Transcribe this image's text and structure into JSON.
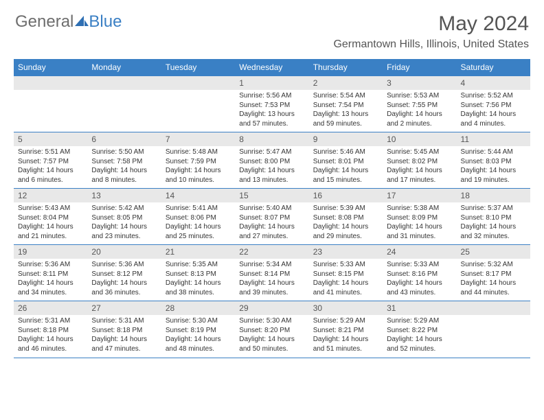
{
  "brand": {
    "part1": "General",
    "part2": "Blue"
  },
  "title": "May 2024",
  "location": "Germantown Hills, Illinois, United States",
  "colors": {
    "header_bg": "#3a80c5",
    "header_text": "#ffffff",
    "rule": "#3a7fc4",
    "daynum_bg": "#e8e8e8",
    "text_gray": "#555555",
    "body_text": "#333333"
  },
  "days_of_week": [
    "Sunday",
    "Monday",
    "Tuesday",
    "Wednesday",
    "Thursday",
    "Friday",
    "Saturday"
  ],
  "weeks": [
    [
      {
        "n": "",
        "sunrise": "",
        "sunset": "",
        "daylight": ""
      },
      {
        "n": "",
        "sunrise": "",
        "sunset": "",
        "daylight": ""
      },
      {
        "n": "",
        "sunrise": "",
        "sunset": "",
        "daylight": ""
      },
      {
        "n": "1",
        "sunrise": "Sunrise: 5:56 AM",
        "sunset": "Sunset: 7:53 PM",
        "daylight": "Daylight: 13 hours and 57 minutes."
      },
      {
        "n": "2",
        "sunrise": "Sunrise: 5:54 AM",
        "sunset": "Sunset: 7:54 PM",
        "daylight": "Daylight: 13 hours and 59 minutes."
      },
      {
        "n": "3",
        "sunrise": "Sunrise: 5:53 AM",
        "sunset": "Sunset: 7:55 PM",
        "daylight": "Daylight: 14 hours and 2 minutes."
      },
      {
        "n": "4",
        "sunrise": "Sunrise: 5:52 AM",
        "sunset": "Sunset: 7:56 PM",
        "daylight": "Daylight: 14 hours and 4 minutes."
      }
    ],
    [
      {
        "n": "5",
        "sunrise": "Sunrise: 5:51 AM",
        "sunset": "Sunset: 7:57 PM",
        "daylight": "Daylight: 14 hours and 6 minutes."
      },
      {
        "n": "6",
        "sunrise": "Sunrise: 5:50 AM",
        "sunset": "Sunset: 7:58 PM",
        "daylight": "Daylight: 14 hours and 8 minutes."
      },
      {
        "n": "7",
        "sunrise": "Sunrise: 5:48 AM",
        "sunset": "Sunset: 7:59 PM",
        "daylight": "Daylight: 14 hours and 10 minutes."
      },
      {
        "n": "8",
        "sunrise": "Sunrise: 5:47 AM",
        "sunset": "Sunset: 8:00 PM",
        "daylight": "Daylight: 14 hours and 13 minutes."
      },
      {
        "n": "9",
        "sunrise": "Sunrise: 5:46 AM",
        "sunset": "Sunset: 8:01 PM",
        "daylight": "Daylight: 14 hours and 15 minutes."
      },
      {
        "n": "10",
        "sunrise": "Sunrise: 5:45 AM",
        "sunset": "Sunset: 8:02 PM",
        "daylight": "Daylight: 14 hours and 17 minutes."
      },
      {
        "n": "11",
        "sunrise": "Sunrise: 5:44 AM",
        "sunset": "Sunset: 8:03 PM",
        "daylight": "Daylight: 14 hours and 19 minutes."
      }
    ],
    [
      {
        "n": "12",
        "sunrise": "Sunrise: 5:43 AM",
        "sunset": "Sunset: 8:04 PM",
        "daylight": "Daylight: 14 hours and 21 minutes."
      },
      {
        "n": "13",
        "sunrise": "Sunrise: 5:42 AM",
        "sunset": "Sunset: 8:05 PM",
        "daylight": "Daylight: 14 hours and 23 minutes."
      },
      {
        "n": "14",
        "sunrise": "Sunrise: 5:41 AM",
        "sunset": "Sunset: 8:06 PM",
        "daylight": "Daylight: 14 hours and 25 minutes."
      },
      {
        "n": "15",
        "sunrise": "Sunrise: 5:40 AM",
        "sunset": "Sunset: 8:07 PM",
        "daylight": "Daylight: 14 hours and 27 minutes."
      },
      {
        "n": "16",
        "sunrise": "Sunrise: 5:39 AM",
        "sunset": "Sunset: 8:08 PM",
        "daylight": "Daylight: 14 hours and 29 minutes."
      },
      {
        "n": "17",
        "sunrise": "Sunrise: 5:38 AM",
        "sunset": "Sunset: 8:09 PM",
        "daylight": "Daylight: 14 hours and 31 minutes."
      },
      {
        "n": "18",
        "sunrise": "Sunrise: 5:37 AM",
        "sunset": "Sunset: 8:10 PM",
        "daylight": "Daylight: 14 hours and 32 minutes."
      }
    ],
    [
      {
        "n": "19",
        "sunrise": "Sunrise: 5:36 AM",
        "sunset": "Sunset: 8:11 PM",
        "daylight": "Daylight: 14 hours and 34 minutes."
      },
      {
        "n": "20",
        "sunrise": "Sunrise: 5:36 AM",
        "sunset": "Sunset: 8:12 PM",
        "daylight": "Daylight: 14 hours and 36 minutes."
      },
      {
        "n": "21",
        "sunrise": "Sunrise: 5:35 AM",
        "sunset": "Sunset: 8:13 PM",
        "daylight": "Daylight: 14 hours and 38 minutes."
      },
      {
        "n": "22",
        "sunrise": "Sunrise: 5:34 AM",
        "sunset": "Sunset: 8:14 PM",
        "daylight": "Daylight: 14 hours and 39 minutes."
      },
      {
        "n": "23",
        "sunrise": "Sunrise: 5:33 AM",
        "sunset": "Sunset: 8:15 PM",
        "daylight": "Daylight: 14 hours and 41 minutes."
      },
      {
        "n": "24",
        "sunrise": "Sunrise: 5:33 AM",
        "sunset": "Sunset: 8:16 PM",
        "daylight": "Daylight: 14 hours and 43 minutes."
      },
      {
        "n": "25",
        "sunrise": "Sunrise: 5:32 AM",
        "sunset": "Sunset: 8:17 PM",
        "daylight": "Daylight: 14 hours and 44 minutes."
      }
    ],
    [
      {
        "n": "26",
        "sunrise": "Sunrise: 5:31 AM",
        "sunset": "Sunset: 8:18 PM",
        "daylight": "Daylight: 14 hours and 46 minutes."
      },
      {
        "n": "27",
        "sunrise": "Sunrise: 5:31 AM",
        "sunset": "Sunset: 8:18 PM",
        "daylight": "Daylight: 14 hours and 47 minutes."
      },
      {
        "n": "28",
        "sunrise": "Sunrise: 5:30 AM",
        "sunset": "Sunset: 8:19 PM",
        "daylight": "Daylight: 14 hours and 48 minutes."
      },
      {
        "n": "29",
        "sunrise": "Sunrise: 5:30 AM",
        "sunset": "Sunset: 8:20 PM",
        "daylight": "Daylight: 14 hours and 50 minutes."
      },
      {
        "n": "30",
        "sunrise": "Sunrise: 5:29 AM",
        "sunset": "Sunset: 8:21 PM",
        "daylight": "Daylight: 14 hours and 51 minutes."
      },
      {
        "n": "31",
        "sunrise": "Sunrise: 5:29 AM",
        "sunset": "Sunset: 8:22 PM",
        "daylight": "Daylight: 14 hours and 52 minutes."
      },
      {
        "n": "",
        "sunrise": "",
        "sunset": "",
        "daylight": ""
      }
    ]
  ]
}
